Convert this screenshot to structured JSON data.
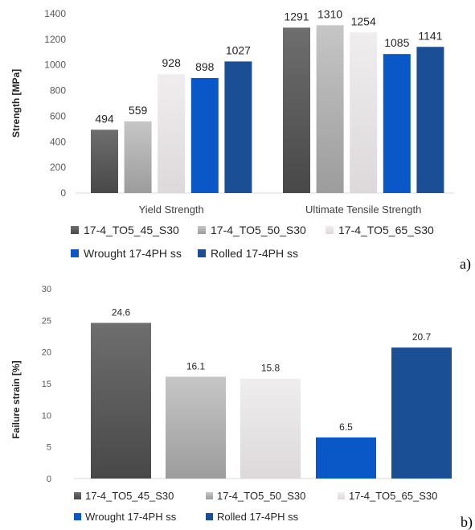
{
  "colors": {
    "17-4_TO5_45_S30": "#5a5a5a",
    "17-4_TO5_50_S30": "#b8b8b8",
    "17-4_TO5_65_S30": "#e8e4e6",
    "Wrought 17-4PH ss": "#0a58c8",
    "Rolled 17-4PH ss": "#1a4f96",
    "axis": "#d9d9d9",
    "text": "#262626"
  },
  "chart_data": [
    {
      "type": "bar",
      "panel_label": "a)",
      "ylabel": "Strength [MPa]",
      "ylim": [
        0,
        1400
      ],
      "yticks": [
        "0",
        "200",
        "400",
        "600",
        "800",
        "1000",
        "1200",
        "1400"
      ],
      "categories": [
        "Yield Strength",
        "Ultimate Tensile Strength"
      ],
      "series": [
        {
          "name": "17-4_TO5_45_S30",
          "values": [
            494,
            1291
          ],
          "labels": [
            "494",
            "1291"
          ]
        },
        {
          "name": "17-4_TO5_50_S30",
          "values": [
            559,
            1310
          ],
          "labels": [
            "559",
            "1310"
          ]
        },
        {
          "name": "17-4_TO5_65_S30",
          "values": [
            928,
            1254
          ],
          "labels": [
            "928",
            "1254"
          ]
        },
        {
          "name": "Wrought 17-4PH ss",
          "values": [
            898,
            1085
          ],
          "labels": [
            "898",
            "1085"
          ]
        },
        {
          "name": "Rolled 17-4PH ss",
          "values": [
            1027,
            1141
          ],
          "labels": [
            "1027",
            "1141"
          ]
        }
      ],
      "legend": "bottom",
      "grid": false
    },
    {
      "type": "bar",
      "panel_label": "b)",
      "ylabel": "Failure strain [%]",
      "ylim": [
        0,
        30
      ],
      "yticks": [
        "0",
        "5",
        "10",
        "15",
        "20",
        "25",
        "30"
      ],
      "categories": [
        "17-4_TO5_45_S30",
        "17-4_TO5_50_S30",
        "17-4_TO5_65_S30",
        "Wrought 17-4PH ss",
        "Rolled 17-4PH ss"
      ],
      "series": [
        {
          "name": "",
          "values": [
            24.6,
            16.1,
            15.8,
            6.5,
            20.7
          ],
          "labels": [
            "24.6",
            "16.1",
            "15.8",
            "6.5",
            "20.7"
          ]
        }
      ],
      "legend": "bottom",
      "grid": false
    }
  ]
}
